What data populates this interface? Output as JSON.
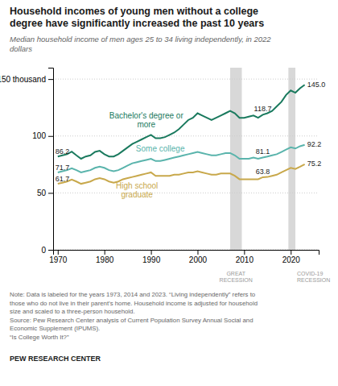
{
  "chart_data": {
    "type": "line",
    "title": "Household incomes of young men without a college\ndegree have significantly increased the past 10 years",
    "subtitle": "Median household income of men ages 25 to 34 living independently, in 2022\ndollars",
    "x": [
      1970,
      1971,
      1972,
      1973,
      1974,
      1975,
      1976,
      1977,
      1978,
      1979,
      1980,
      1981,
      1982,
      1983,
      1984,
      1985,
      1986,
      1987,
      1988,
      1989,
      1990,
      1991,
      1992,
      1993,
      1994,
      1995,
      1996,
      1997,
      1998,
      1999,
      2000,
      2001,
      2002,
      2003,
      2004,
      2005,
      2006,
      2007,
      2008,
      2009,
      2010,
      2011,
      2012,
      2013,
      2014,
      2015,
      2016,
      2017,
      2018,
      2019,
      2020,
      2021,
      2022,
      2023
    ],
    "series": [
      {
        "name": "Bachelor's degree or\nmore",
        "color": "#1a7a5e",
        "values": [
          82,
          83,
          84,
          86.2,
          83,
          80,
          82,
          83,
          86,
          87,
          84,
          82,
          82,
          84,
          87,
          90,
          93,
          95,
          97,
          99,
          101,
          98,
          98,
          99,
          101,
          103,
          106,
          110,
          114,
          116,
          120,
          118,
          116,
          114,
          116,
          118,
          120,
          122,
          120,
          116,
          116,
          117,
          118,
          116,
          118.7,
          120,
          122,
          126,
          130,
          136,
          140,
          138,
          142,
          145.0
        ]
      },
      {
        "name": "Some college",
        "color": "#5ab4ac",
        "values": [
          68,
          69,
          70,
          71.7,
          70,
          68,
          69,
          70,
          72,
          73,
          72,
          70,
          69,
          70,
          72,
          74,
          76,
          77,
          78,
          79,
          80,
          78,
          78,
          79,
          80,
          81,
          82,
          83,
          84,
          85,
          86,
          85,
          84,
          83,
          83,
          84,
          85,
          85,
          83,
          80,
          80,
          80,
          81,
          80,
          81.1,
          82,
          83,
          84,
          86,
          88,
          90,
          89,
          91,
          92.2
        ]
      },
      {
        "name": "High school\ngraduate",
        "color": "#c8a84b",
        "values": [
          58,
          59,
          60,
          61.7,
          60,
          58,
          59,
          60,
          62,
          63,
          62,
          60,
          59,
          60,
          62,
          63,
          64,
          65,
          66,
          67,
          68,
          65,
          65,
          65,
          65,
          66,
          66,
          67,
          68,
          68,
          69,
          68,
          67,
          66,
          66,
          67,
          67,
          67,
          65,
          62,
          62,
          62,
          62,
          62,
          63.8,
          64,
          65,
          66,
          68,
          70,
          72,
          71,
          73,
          75.2
        ]
      }
    ],
    "xlim": [
      1969,
      2026
    ],
    "xticks": [
      1970,
      1980,
      1990,
      2000,
      2010,
      2020
    ],
    "ylim": [
      0,
      160
    ],
    "yticks": [
      0,
      50,
      100,
      {
        "value": 150,
        "label": "150 thousand"
      }
    ],
    "grid": "y",
    "shaded_regions": [
      {
        "x1": 2007,
        "x2": 2009.5,
        "label": "GREAT\nRECESSION",
        "color": "#d8d8d8"
      },
      {
        "x1": 2019.5,
        "x2": 2021.0,
        "label": "COVID-19\nRECESSION",
        "color": "#d8d8d8"
      }
    ],
    "annotations": [
      {
        "x": 1973,
        "y": 86.2,
        "text": "86.2"
      },
      {
        "x": 1973,
        "y": 71.7,
        "text": "71.7"
      },
      {
        "x": 1973,
        "y": 61.7,
        "text": "61.7"
      },
      {
        "x": 2014,
        "y": 118.7,
        "text": "118.7"
      },
      {
        "x": 2014,
        "y": 81.1,
        "text": "81.1"
      },
      {
        "x": 2014,
        "y": 63.8,
        "text": "63.8"
      },
      {
        "x": 2023,
        "y": 145.0,
        "text": "145.0"
      },
      {
        "x": 2023,
        "y": 92.2,
        "text": "92.2"
      },
      {
        "x": 2023,
        "y": 75.2,
        "text": "75.2"
      }
    ],
    "note": "Note: Data is labeled for the years 1973, 2014 and 2023. “Living independently” refers to\nthose who do not live in their parent’s home. Household income is adjusted for household\nsize and scaled to a three-person household.\nSource: Pew Research Center analysis of Current Population Survey Annual Social and\nEconomic Supplement (IPUMS).\n“Is College Worth It?”",
    "source": "PEW RESEARCH CENTER"
  }
}
